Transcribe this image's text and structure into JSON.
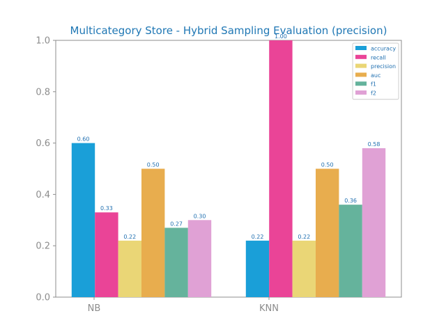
{
  "chart_data": {
    "type": "bar",
    "title": "Multicategory Store - Hybrid Sampling Evaluation (precision)",
    "categories": [
      "NB",
      "KNN"
    ],
    "series": [
      {
        "name": "accuracy",
        "values": [
          0.6,
          0.22
        ],
        "labels": [
          "0.60",
          "0.22"
        ],
        "color": "#1a9fd8"
      },
      {
        "name": "recall",
        "values": [
          0.33,
          1.0
        ],
        "labels": [
          "0.33",
          "1.00"
        ],
        "color": "#ea4497"
      },
      {
        "name": "precision",
        "values": [
          0.22,
          0.22
        ],
        "labels": [
          "0.22",
          "0.22"
        ],
        "color": "#ead676"
      },
      {
        "name": "auc",
        "values": [
          0.5,
          0.5
        ],
        "labels": [
          "0.50",
          "0.50"
        ],
        "color": "#e8ad4e"
      },
      {
        "name": "f1",
        "values": [
          0.27,
          0.36
        ],
        "labels": [
          "0.27",
          "0.36"
        ],
        "color": "#65b39c"
      },
      {
        "name": "f2",
        "values": [
          0.3,
          0.58
        ],
        "labels": [
          "0.30",
          "0.58"
        ],
        "color": "#e0a1d5"
      }
    ],
    "ylim": [
      0,
      1.0
    ],
    "yticks": [
      "0.0",
      "0.2",
      "0.4",
      "0.6",
      "0.8",
      "1.0"
    ],
    "grid": false,
    "legend_position": "top-right"
  }
}
